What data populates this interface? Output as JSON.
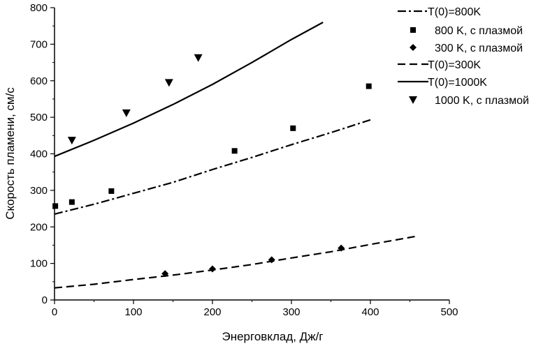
{
  "chart_data": {
    "type": "line",
    "xlabel": "Энерговклад, Дж/г",
    "ylabel": "Скорость пламени, см/с",
    "xlim": [
      0,
      500
    ],
    "ylim": [
      0,
      800
    ],
    "xticks": [
      "0",
      "100",
      "200",
      "300",
      "400",
      "500"
    ],
    "yticks": [
      "0",
      "100",
      "200",
      "300",
      "400",
      "500",
      "600",
      "700",
      "800"
    ],
    "legend_position": "right",
    "lines": [
      {
        "name": "T(0)=800K",
        "style": "dashdot",
        "x": [
          0,
          50,
          100,
          150,
          200,
          250,
          300,
          350,
          400
        ],
        "y": [
          235,
          262,
          292,
          322,
          357,
          390,
          425,
          458,
          493
        ]
      },
      {
        "name": "T(0)=300K",
        "style": "dashed",
        "x": [
          0,
          50,
          100,
          150,
          200,
          250,
          300,
          350,
          400,
          460
        ],
        "y": [
          33,
          43,
          56,
          68,
          82,
          97,
          115,
          132,
          152,
          175
        ]
      },
      {
        "name": "T(0)=1000K",
        "style": "solid",
        "x": [
          0,
          50,
          100,
          150,
          200,
          250,
          300,
          340
        ],
        "y": [
          393,
          437,
          484,
          535,
          590,
          650,
          713,
          760
        ]
      }
    ],
    "scatter": [
      {
        "name": "800 K, с плазмой",
        "marker": "square",
        "x": [
          1,
          22,
          72,
          228,
          302,
          398
        ],
        "y": [
          257,
          268,
          298,
          408,
          470,
          585
        ]
      },
      {
        "name": "300 K, с плазмой",
        "marker": "diamond",
        "x": [
          140,
          200,
          275,
          363
        ],
        "y": [
          72,
          85,
          110,
          142
        ]
      },
      {
        "name": "1000 K, с плазмой",
        "marker": "triangle-down",
        "x": [
          22,
          91,
          145,
          182
        ],
        "y": [
          437,
          512,
          595,
          663
        ]
      }
    ],
    "legend": [
      {
        "label": "T(0)=800K",
        "kind": "line",
        "style": "dashdot"
      },
      {
        "label": "800 K, с плазмой",
        "kind": "marker",
        "marker": "square"
      },
      {
        "label": "300 K, с плазмой",
        "kind": "marker",
        "marker": "diamond"
      },
      {
        "label": "T(0)=300K",
        "kind": "line",
        "style": "dashed"
      },
      {
        "label": "T(0)=1000K",
        "kind": "line",
        "style": "solid"
      },
      {
        "label": "1000 K, с плазмой",
        "kind": "marker",
        "marker": "triangle-down"
      }
    ]
  }
}
